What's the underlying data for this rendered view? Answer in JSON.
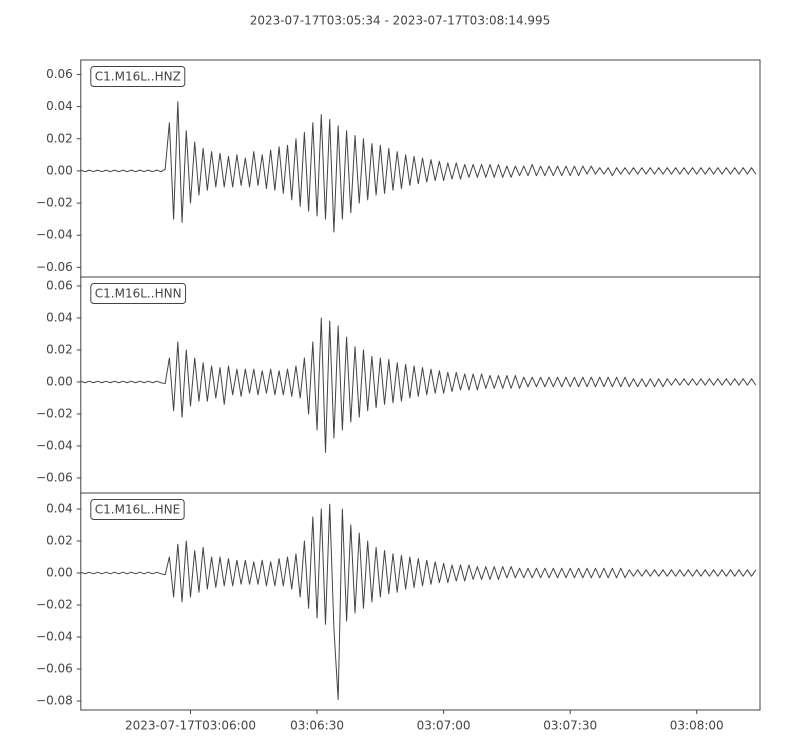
{
  "title": "2023-07-17T03:05:34  -  2023-07-17T03:08:14.995",
  "chart_data": [
    {
      "type": "line",
      "x": [
        0,
        1,
        2,
        3,
        4,
        5,
        6,
        7,
        8,
        9,
        10,
        11,
        12,
        13,
        14,
        15,
        16,
        17,
        18,
        19,
        20,
        21,
        22,
        23,
        24,
        25,
        26,
        27,
        28,
        29,
        30,
        31,
        32,
        33,
        34,
        35,
        36,
        37,
        38,
        39,
        40,
        41,
        42,
        43,
        44,
        45,
        46,
        47,
        48,
        49,
        50,
        51,
        52,
        53,
        54,
        55,
        56,
        57,
        58,
        59,
        60,
        61,
        62,
        63,
        64,
        65,
        66,
        67,
        68,
        69,
        70,
        71,
        72,
        73,
        74,
        75,
        76,
        77,
        78,
        79,
        80,
        81,
        82,
        83,
        84,
        85,
        86,
        87,
        88,
        89,
        90,
        91,
        92,
        93,
        94,
        95,
        96,
        97,
        98,
        99,
        100,
        101,
        102,
        103,
        104,
        105,
        106,
        107,
        108,
        109,
        110,
        111,
        112,
        113,
        114,
        115,
        116,
        117,
        118,
        119,
        120,
        121,
        122,
        123,
        124,
        125,
        126,
        127,
        128,
        129,
        130,
        131,
        132,
        133,
        134,
        135,
        136,
        137,
        138,
        139,
        140,
        141,
        142,
        143,
        144,
        145,
        146,
        147,
        148,
        149,
        150,
        151,
        152,
        153,
        154,
        155,
        156,
        157,
        158,
        159,
        160
      ],
      "xlim": [
        0,
        160.995
      ],
      "ylim": [
        -0.066,
        0.069
      ],
      "yticks": [
        {
          "value": 0.06,
          "label": "0.06"
        },
        {
          "value": 0.04,
          "label": "0.04"
        },
        {
          "value": 0.02,
          "label": "0.02"
        },
        {
          "value": 0,
          "label": "0.00"
        },
        {
          "value": -0.02,
          "label": "−0.02"
        },
        {
          "value": -0.04,
          "label": "−0.04"
        },
        {
          "value": -0.06,
          "label": "−0.06"
        }
      ],
      "series": [
        {
          "name": "C1.M16L..HNZ",
          "color": "#444444",
          "values": [
            0.0005,
            -0.0005,
            0.0005,
            -0.0005,
            0.0005,
            -0.0005,
            0.0005,
            -0.0005,
            0.0005,
            -0.0005,
            0.0005,
            -0.0005,
            0.0005,
            -0.0005,
            0.0005,
            -0.0005,
            0.0005,
            -0.0005,
            0.0005,
            -0.0005,
            0.001,
            0.03,
            -0.03,
            0.043,
            -0.032,
            0.025,
            -0.02,
            0.018,
            -0.015,
            0.014,
            -0.012,
            0.012,
            -0.01,
            0.011,
            -0.01,
            0.009,
            -0.01,
            0.01,
            -0.009,
            0.008,
            -0.01,
            0.012,
            -0.009,
            0.01,
            -0.011,
            0.013,
            -0.012,
            0.015,
            -0.014,
            0.016,
            -0.018,
            0.02,
            -0.022,
            0.024,
            -0.025,
            0.03,
            -0.028,
            0.035,
            -0.03,
            0.032,
            -0.038,
            0.028,
            -0.03,
            0.025,
            -0.026,
            0.022,
            -0.02,
            0.02,
            -0.018,
            0.017,
            -0.015,
            0.016,
            -0.014,
            0.014,
            -0.012,
            0.012,
            -0.011,
            0.01,
            -0.009,
            0.009,
            -0.008,
            0.008,
            -0.007,
            0.007,
            -0.006,
            0.006,
            -0.006,
            0.005,
            -0.005,
            0.005,
            -0.005,
            0.004,
            -0.004,
            0.004,
            -0.004,
            0.004,
            -0.004,
            0.004,
            -0.004,
            0.004,
            -0.004,
            0.003,
            -0.004,
            0.003,
            -0.003,
            0.003,
            -0.003,
            0.004,
            -0.003,
            0.003,
            -0.003,
            0.003,
            -0.003,
            0.003,
            -0.003,
            0.003,
            -0.003,
            0.003,
            -0.003,
            0.003,
            -0.002,
            0.003,
            -0.002,
            0.002,
            -0.002,
            0.002,
            -0.003,
            0.002,
            -0.002,
            0.002,
            -0.002,
            0.002,
            -0.002,
            0.002,
            -0.002,
            0.002,
            -0.002,
            0.002,
            -0.002,
            0.002,
            -0.002,
            0.002,
            -0.002,
            0.002,
            -0.002,
            0.002,
            -0.002,
            0.002,
            -0.002,
            0.002,
            -0.002,
            0.002,
            -0.002,
            0.002,
            -0.002,
            0.002,
            -0.002,
            0.002,
            -0.002,
            0.002,
            -0.002
          ]
        }
      ]
    },
    {
      "type": "line",
      "x": [
        0,
        1,
        2,
        3,
        4,
        5,
        6,
        7,
        8,
        9,
        10,
        11,
        12,
        13,
        14,
        15,
        16,
        17,
        18,
        19,
        20,
        21,
        22,
        23,
        24,
        25,
        26,
        27,
        28,
        29,
        30,
        31,
        32,
        33,
        34,
        35,
        36,
        37,
        38,
        39,
        40,
        41,
        42,
        43,
        44,
        45,
        46,
        47,
        48,
        49,
        50,
        51,
        52,
        53,
        54,
        55,
        56,
        57,
        58,
        59,
        60,
        61,
        62,
        63,
        64,
        65,
        66,
        67,
        68,
        69,
        70,
        71,
        72,
        73,
        74,
        75,
        76,
        77,
        78,
        79,
        80,
        81,
        82,
        83,
        84,
        85,
        86,
        87,
        88,
        89,
        90,
        91,
        92,
        93,
        94,
        95,
        96,
        97,
        98,
        99,
        100,
        101,
        102,
        103,
        104,
        105,
        106,
        107,
        108,
        109,
        110,
        111,
        112,
        113,
        114,
        115,
        116,
        117,
        118,
        119,
        120,
        121,
        122,
        123,
        124,
        125,
        126,
        127,
        128,
        129,
        130,
        131,
        132,
        133,
        134,
        135,
        136,
        137,
        138,
        139,
        140,
        141,
        142,
        143,
        144,
        145,
        146,
        147,
        148,
        149,
        150,
        151,
        152,
        153,
        154,
        155,
        156,
        157,
        158,
        159,
        160
      ],
      "xlim": [
        0,
        160.995
      ],
      "ylim": [
        -0.0694,
        0.0656
      ],
      "yticks": [
        {
          "value": 0.06,
          "label": "0.06"
        },
        {
          "value": 0.04,
          "label": "0.04"
        },
        {
          "value": 0.02,
          "label": "0.02"
        },
        {
          "value": 0,
          "label": "0.00"
        },
        {
          "value": -0.02,
          "label": "−0.02"
        },
        {
          "value": -0.04,
          "label": "−0.04"
        },
        {
          "value": -0.06,
          "label": "−0.06"
        }
      ],
      "series": [
        {
          "name": "C1.M16L..HNN",
          "color": "#444444",
          "values": [
            0.0005,
            -0.0005,
            0.0005,
            -0.0005,
            0.0005,
            -0.0005,
            0.0005,
            -0.0005,
            0.0005,
            -0.0005,
            0.0005,
            -0.0005,
            0.0005,
            -0.0005,
            0.0005,
            -0.0005,
            0.0005,
            -0.0005,
            0.0005,
            -0.0005,
            -0.001,
            0.015,
            -0.018,
            0.025,
            -0.022,
            0.02,
            -0.015,
            0.015,
            -0.012,
            0.012,
            -0.012,
            0.01,
            -0.01,
            0.009,
            -0.014,
            0.01,
            -0.008,
            0.008,
            -0.009,
            0.008,
            -0.007,
            0.008,
            -0.008,
            0.007,
            -0.007,
            0.008,
            -0.008,
            0.007,
            -0.008,
            0.008,
            -0.009,
            0.01,
            -0.01,
            0.015,
            -0.02,
            0.025,
            -0.03,
            0.04,
            -0.044,
            0.038,
            -0.035,
            0.035,
            -0.03,
            0.028,
            -0.025,
            0.022,
            -0.022,
            0.02,
            -0.018,
            0.016,
            -0.016,
            0.015,
            -0.014,
            0.014,
            -0.013,
            0.012,
            -0.012,
            0.011,
            -0.01,
            0.01,
            -0.009,
            0.009,
            -0.008,
            0.008,
            -0.007,
            0.007,
            -0.007,
            0.006,
            -0.006,
            0.006,
            -0.005,
            0.005,
            -0.005,
            0.005,
            -0.005,
            0.005,
            -0.004,
            0.004,
            -0.004,
            0.004,
            -0.004,
            0.004,
            -0.004,
            0.004,
            -0.004,
            0.003,
            -0.003,
            0.003,
            -0.003,
            0.003,
            -0.003,
            0.003,
            -0.003,
            0.003,
            -0.003,
            0.003,
            -0.003,
            0.003,
            -0.003,
            0.003,
            -0.003,
            0.003,
            -0.003,
            0.003,
            -0.003,
            0.003,
            -0.003,
            0.003,
            -0.003,
            0.003,
            -0.003,
            0.002,
            -0.003,
            0.002,
            -0.003,
            0.002,
            -0.003,
            0.002,
            -0.003,
            0.002,
            -0.002,
            0.002,
            -0.002,
            0.002,
            -0.002,
            0.002,
            -0.002,
            0.002,
            -0.002,
            0.002,
            -0.002,
            0.002,
            -0.002,
            0.002,
            -0.002,
            0.002,
            -0.002,
            0.002,
            -0.002,
            0.002,
            -0.002
          ]
        }
      ]
    },
    {
      "type": "line",
      "x": [
        0,
        1,
        2,
        3,
        4,
        5,
        6,
        7,
        8,
        9,
        10,
        11,
        12,
        13,
        14,
        15,
        16,
        17,
        18,
        19,
        20,
        21,
        22,
        23,
        24,
        25,
        26,
        27,
        28,
        29,
        30,
        31,
        32,
        33,
        34,
        35,
        36,
        37,
        38,
        39,
        40,
        41,
        42,
        43,
        44,
        45,
        46,
        47,
        48,
        49,
        50,
        51,
        52,
        53,
        54,
        55,
        56,
        57,
        58,
        59,
        60,
        61,
        62,
        63,
        64,
        65,
        66,
        67,
        68,
        69,
        70,
        71,
        72,
        73,
        74,
        75,
        76,
        77,
        78,
        79,
        80,
        81,
        82,
        83,
        84,
        85,
        86,
        87,
        88,
        89,
        90,
        91,
        92,
        93,
        94,
        95,
        96,
        97,
        98,
        99,
        100,
        101,
        102,
        103,
        104,
        105,
        106,
        107,
        108,
        109,
        110,
        111,
        112,
        113,
        114,
        115,
        116,
        117,
        118,
        119,
        120,
        121,
        122,
        123,
        124,
        125,
        126,
        127,
        128,
        129,
        130,
        131,
        132,
        133,
        134,
        135,
        136,
        137,
        138,
        139,
        140,
        141,
        142,
        143,
        144,
        145,
        146,
        147,
        148,
        149,
        150,
        151,
        152,
        153,
        154,
        155,
        156,
        157,
        158,
        159,
        160
      ],
      "xlim": [
        0,
        160.995
      ],
      "xticks": [
        {
          "value": 26,
          "label": "2023-07-17T03:06:00"
        },
        {
          "value": 56,
          "label": "03:06:30"
        },
        {
          "value": 86,
          "label": "03:07:00"
        },
        {
          "value": 116,
          "label": "03:07:30"
        },
        {
          "value": 146,
          "label": "03:08:00"
        }
      ],
      "ylim": [
        -0.0856,
        0.05
      ],
      "yticks": [
        {
          "value": 0.04,
          "label": "0.04"
        },
        {
          "value": 0.02,
          "label": "0.02"
        },
        {
          "value": 0,
          "label": "0.00"
        },
        {
          "value": -0.02,
          "label": "−0.02"
        },
        {
          "value": -0.04,
          "label": "−0.04"
        },
        {
          "value": -0.06,
          "label": "−0.06"
        },
        {
          "value": -0.08,
          "label": "−0.08"
        }
      ],
      "series": [
        {
          "name": "C1.M16L..HNE",
          "color": "#444444",
          "values": [
            0.0005,
            -0.0005,
            0.0005,
            -0.0005,
            0.0005,
            -0.0005,
            0.0005,
            -0.0005,
            0.0005,
            -0.0005,
            0.0005,
            -0.0005,
            0.0005,
            -0.0005,
            0.0005,
            -0.0005,
            0.0005,
            -0.0005,
            0.0005,
            -0.0005,
            -0.001,
            0.01,
            -0.015,
            0.018,
            -0.018,
            0.02,
            -0.015,
            0.014,
            -0.012,
            0.016,
            -0.01,
            0.01,
            -0.009,
            0.01,
            -0.008,
            0.009,
            -0.008,
            0.008,
            -0.007,
            0.008,
            -0.007,
            0.007,
            -0.007,
            0.008,
            -0.008,
            0.007,
            -0.008,
            0.009,
            -0.008,
            0.01,
            -0.01,
            0.012,
            -0.015,
            0.02,
            -0.022,
            0.035,
            -0.028,
            0.04,
            -0.032,
            0.043,
            -0.035,
            -0.079,
            0.04,
            -0.03,
            0.03,
            -0.025,
            0.025,
            -0.022,
            0.02,
            -0.018,
            0.016,
            -0.015,
            0.014,
            -0.013,
            0.012,
            -0.012,
            0.011,
            -0.01,
            0.01,
            -0.009,
            0.009,
            -0.008,
            0.008,
            -0.007,
            0.007,
            -0.006,
            0.006,
            -0.006,
            0.005,
            -0.005,
            0.005,
            -0.005,
            0.005,
            -0.004,
            0.004,
            -0.004,
            0.004,
            -0.004,
            0.004,
            -0.004,
            0.004,
            -0.003,
            0.004,
            -0.003,
            0.003,
            -0.003,
            0.003,
            -0.003,
            0.003,
            -0.003,
            0.003,
            -0.003,
            0.003,
            -0.003,
            0.003,
            -0.003,
            0.003,
            -0.003,
            0.003,
            -0.003,
            0.003,
            -0.003,
            0.003,
            -0.003,
            0.003,
            -0.003,
            0.003,
            -0.003,
            0.003,
            -0.003,
            0.002,
            -0.002,
            0.002,
            -0.002,
            0.002,
            -0.002,
            0.002,
            -0.002,
            0.002,
            -0.002,
            0.002,
            -0.002,
            0.002,
            -0.002,
            0.002,
            -0.002,
            0.002,
            -0.002,
            0.002,
            -0.002,
            0.002,
            -0.002,
            0.002,
            -0.002,
            0.002,
            -0.002,
            0.002,
            -0.002,
            0.002,
            -0.002,
            0.002
          ]
        }
      ]
    }
  ]
}
